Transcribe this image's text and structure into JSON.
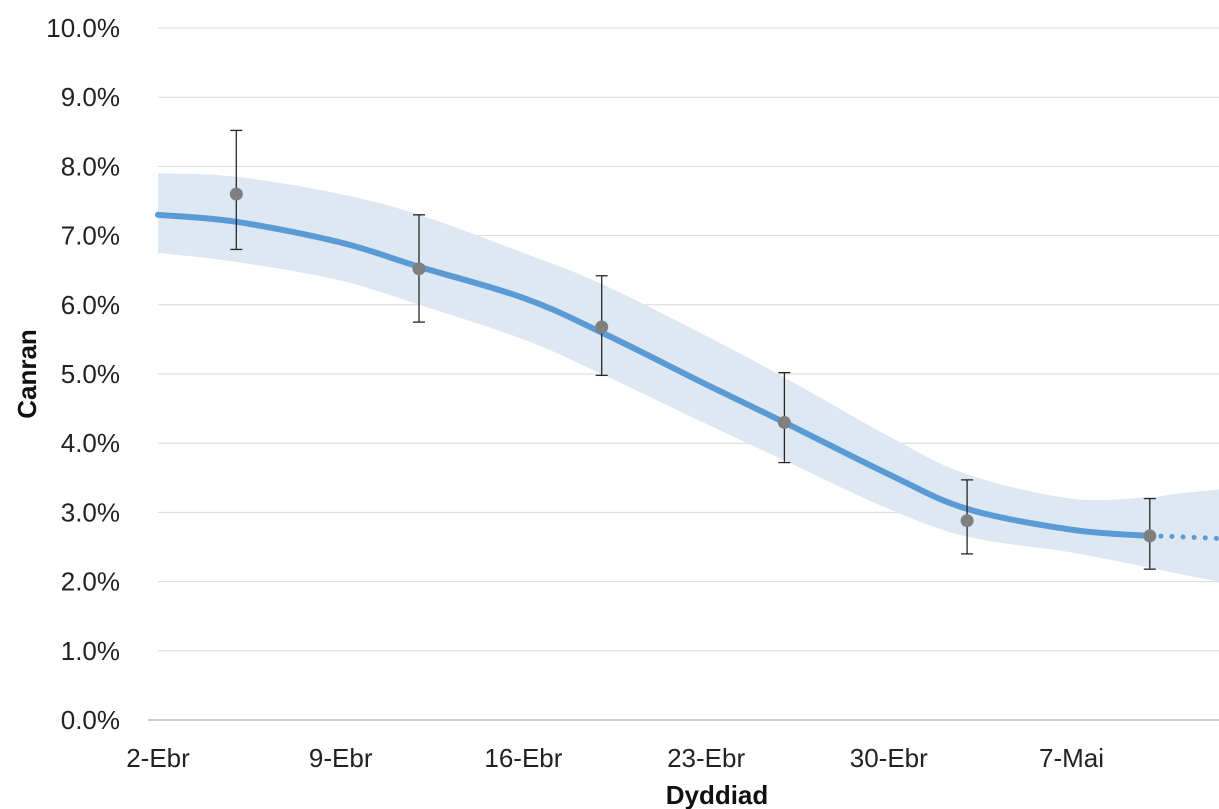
{
  "chart_data": {
    "type": "line",
    "xlabel": "Dyddiad",
    "ylabel": "Canran",
    "ylim": [
      0,
      10
    ],
    "yticks": [
      "0.0%",
      "1.0%",
      "2.0%",
      "3.0%",
      "4.0%",
      "5.0%",
      "6.0%",
      "7.0%",
      "8.0%",
      "9.0%",
      "10.0%"
    ],
    "xlim": [
      "2020-04-02",
      "2020-05-14"
    ],
    "xticks": [
      {
        "date": "2020-04-02",
        "label": "2-Ebr"
      },
      {
        "date": "2020-04-09",
        "label": "9-Ebr"
      },
      {
        "date": "2020-04-16",
        "label": "16-Ebr"
      },
      {
        "date": "2020-04-23",
        "label": "23-Ebr"
      },
      {
        "date": "2020-04-30",
        "label": "30-Ebr"
      },
      {
        "date": "2020-05-07",
        "label": "7-Mai"
      }
    ],
    "grid": true,
    "modelled_trend": {
      "x": [
        "2020-04-02",
        "2020-04-05",
        "2020-04-09",
        "2020-04-12",
        "2020-04-16",
        "2020-04-19",
        "2020-04-23",
        "2020-04-26",
        "2020-04-30",
        "2020-05-03",
        "2020-05-07",
        "2020-05-10",
        "2020-05-11",
        "2020-05-14"
      ],
      "y": [
        7.3,
        7.2,
        6.9,
        6.55,
        6.1,
        5.6,
        4.85,
        4.3,
        3.55,
        3.05,
        2.75,
        2.66,
        2.65,
        2.6
      ],
      "lower": [
        6.75,
        6.62,
        6.35,
        6.0,
        5.5,
        5.0,
        4.28,
        3.75,
        3.05,
        2.65,
        2.42,
        2.2,
        2.12,
        1.9
      ],
      "upper": [
        7.9,
        7.85,
        7.6,
        7.3,
        6.75,
        6.3,
        5.55,
        4.95,
        4.1,
        3.55,
        3.2,
        3.22,
        3.27,
        3.38
      ],
      "projected_from": "2020-05-10"
    },
    "estimates": {
      "x": [
        "2020-04-05",
        "2020-04-12",
        "2020-04-19",
        "2020-04-26",
        "2020-05-03",
        "2020-05-10"
      ],
      "y": [
        7.6,
        6.52,
        5.68,
        4.3,
        2.88,
        2.66
      ],
      "lower": [
        6.8,
        5.75,
        4.98,
        3.72,
        2.4,
        2.18
      ],
      "upper": [
        8.52,
        7.3,
        6.42,
        5.02,
        3.47,
        3.2
      ]
    },
    "colors": {
      "trend_line": "#5b9bd5",
      "confidence_band": "#dde8f2",
      "estimate_marker": "#7f7f7f",
      "error_bar": "#262626",
      "gridline": "#d9d9d9",
      "axis_line": "#bfbfbf"
    }
  }
}
